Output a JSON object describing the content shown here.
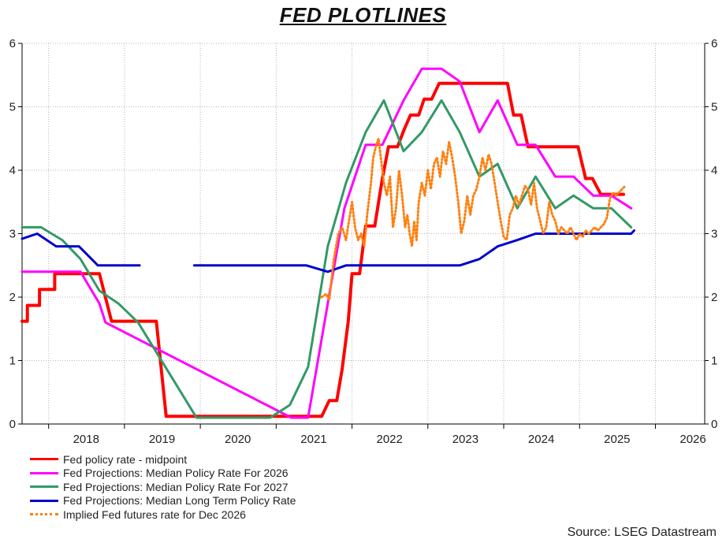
{
  "chart_data": {
    "type": "line",
    "title": "FED PLOTLINES",
    "source": "Source: LSEG Datastream",
    "y_range": [
      0,
      6
    ],
    "y_ticks": [
      0,
      1,
      2,
      3,
      4,
      5,
      6
    ],
    "x_range": [
      2017.65,
      2026.65
    ],
    "x_tick_labels": [
      "2018",
      "2019",
      "2020",
      "2021",
      "2022",
      "2023",
      "2024",
      "2025",
      "2026"
    ],
    "x_tick_positions": [
      2018.0,
      2019.0,
      2020.0,
      2021.0,
      2022.0,
      2023.0,
      2024.0,
      2025.0,
      2026.0
    ],
    "grid": true,
    "legend_position": "bottom-left",
    "series": [
      {
        "name": "Fed policy rate - midpoint",
        "color": "#ff0000",
        "style": "solid",
        "points": [
          [
            2017.65,
            1.62
          ],
          [
            2017.72,
            1.62
          ],
          [
            2017.72,
            1.87
          ],
          [
            2017.88,
            1.87
          ],
          [
            2017.88,
            2.12
          ],
          [
            2018.08,
            2.12
          ],
          [
            2018.08,
            2.37
          ],
          [
            2018.67,
            2.37
          ],
          [
            2018.83,
            1.62
          ],
          [
            2019.18,
            1.62
          ],
          [
            2019.18,
            1.62
          ],
          [
            2019.42,
            1.62
          ],
          [
            2019.55,
            0.12
          ],
          [
            2021.5,
            0.12
          ],
          [
            2021.6,
            0.12
          ],
          [
            2021.7,
            0.37
          ],
          [
            2021.8,
            0.37
          ],
          [
            2021.87,
            0.87
          ],
          [
            2021.95,
            1.62
          ],
          [
            2022.0,
            2.37
          ],
          [
            2022.1,
            2.37
          ],
          [
            2022.18,
            3.12
          ],
          [
            2022.3,
            3.12
          ],
          [
            2022.4,
            3.87
          ],
          [
            2022.48,
            4.37
          ],
          [
            2022.6,
            4.37
          ],
          [
            2022.68,
            4.62
          ],
          [
            2022.77,
            4.87
          ],
          [
            2022.88,
            4.87
          ],
          [
            2022.95,
            5.12
          ],
          [
            2023.05,
            5.12
          ],
          [
            2023.15,
            5.37
          ],
          [
            2024.05,
            5.37
          ],
          [
            2024.13,
            4.87
          ],
          [
            2024.23,
            4.87
          ],
          [
            2024.32,
            4.37
          ],
          [
            2024.98,
            4.37
          ],
          [
            2025.08,
            3.87
          ],
          [
            2025.17,
            3.87
          ],
          [
            2025.28,
            3.62
          ],
          [
            2025.58,
            3.62
          ]
        ]
      },
      {
        "name": "Fed Projections: Median Policy Rate For 2026",
        "color": "#ff00ff",
        "style": "solid",
        "points": [
          [
            2017.65,
            2.4
          ],
          [
            2018.42,
            2.4
          ],
          [
            2018.67,
            1.9
          ],
          [
            2018.75,
            1.6
          ],
          [
            2021.2,
            0.1
          ],
          [
            2021.42,
            0.1
          ],
          [
            2021.68,
            1.9
          ],
          [
            2021.9,
            3.4
          ],
          [
            2022.18,
            4.4
          ],
          [
            2022.4,
            4.4
          ],
          [
            2022.68,
            5.1
          ],
          [
            2022.92,
            5.6
          ],
          [
            2023.18,
            5.6
          ],
          [
            2023.42,
            5.4
          ],
          [
            2023.68,
            4.6
          ],
          [
            2023.92,
            5.1
          ],
          [
            2024.18,
            4.4
          ],
          [
            2024.42,
            4.4
          ],
          [
            2024.68,
            3.9
          ],
          [
            2024.92,
            3.9
          ],
          [
            2025.18,
            3.6
          ],
          [
            2025.42,
            3.6
          ],
          [
            2025.68,
            3.4
          ]
        ]
      },
      {
        "name": "Fed Projections: Median Policy Rate For 2027",
        "color": "#339966",
        "style": "solid",
        "points": [
          [
            2017.65,
            3.1
          ],
          [
            2017.9,
            3.1
          ],
          [
            2018.18,
            2.9
          ],
          [
            2018.42,
            2.6
          ],
          [
            2018.67,
            2.1
          ],
          [
            2018.92,
            1.9
          ],
          [
            2019.18,
            1.6
          ],
          [
            2019.95,
            0.1
          ],
          [
            2020.92,
            0.1
          ],
          [
            2021.18,
            0.3
          ],
          [
            2021.42,
            0.9
          ],
          [
            2021.68,
            2.8
          ],
          [
            2021.92,
            3.8
          ],
          [
            2022.18,
            4.6
          ],
          [
            2022.42,
            5.1
          ],
          [
            2022.68,
            4.3
          ],
          [
            2022.92,
            4.6
          ],
          [
            2023.18,
            5.1
          ],
          [
            2023.42,
            4.6
          ],
          [
            2023.68,
            3.9
          ],
          [
            2023.92,
            4.1
          ],
          [
            2024.18,
            3.4
          ],
          [
            2024.42,
            3.9
          ],
          [
            2024.68,
            3.4
          ],
          [
            2024.92,
            3.6
          ],
          [
            2025.18,
            3.4
          ],
          [
            2025.42,
            3.4
          ],
          [
            2025.68,
            3.1
          ]
        ]
      },
      {
        "name": "Fed Projections: Median Long Term Policy Rate",
        "color": "#0000cc",
        "style": "solid",
        "segments": [
          [
            [
              2017.65,
              2.92
            ],
            [
              2017.85,
              3.0
            ],
            [
              2018.1,
              2.8
            ],
            [
              2018.4,
              2.8
            ],
            [
              2018.65,
              2.5
            ],
            [
              2019.2,
              2.5
            ]
          ],
          [
            [
              2019.92,
              2.5
            ],
            [
              2021.4,
              2.5
            ],
            [
              2021.68,
              2.4
            ],
            [
              2021.92,
              2.5
            ],
            [
              2023.42,
              2.5
            ],
            [
              2023.68,
              2.6
            ],
            [
              2023.92,
              2.8
            ],
            [
              2024.18,
              2.9
            ],
            [
              2024.42,
              3.0
            ],
            [
              2025.68,
              3.0
            ],
            [
              2025.72,
              3.05
            ]
          ]
        ]
      },
      {
        "name": "Implied Fed futures rate for Dec 2026",
        "color": "#ff7f0e",
        "style": "dotted",
        "points": [
          [
            2021.6,
            2.0
          ],
          [
            2021.66,
            2.05
          ],
          [
            2021.7,
            1.95
          ],
          [
            2021.76,
            2.6
          ],
          [
            2021.82,
            3.0
          ],
          [
            2021.87,
            3.1
          ],
          [
            2021.92,
            2.9
          ],
          [
            2021.96,
            3.2
          ],
          [
            2022.0,
            3.5
          ],
          [
            2022.04,
            3.1
          ],
          [
            2022.08,
            2.9
          ],
          [
            2022.12,
            3.0
          ],
          [
            2022.16,
            2.8
          ],
          [
            2022.2,
            3.3
          ],
          [
            2022.25,
            3.8
          ],
          [
            2022.28,
            4.2
          ],
          [
            2022.32,
            4.4
          ],
          [
            2022.35,
            4.5
          ],
          [
            2022.38,
            4.2
          ],
          [
            2022.42,
            3.8
          ],
          [
            2022.46,
            3.6
          ],
          [
            2022.5,
            3.9
          ],
          [
            2022.54,
            3.1
          ],
          [
            2022.58,
            3.4
          ],
          [
            2022.62,
            4.0
          ],
          [
            2022.66,
            3.6
          ],
          [
            2022.7,
            3.1
          ],
          [
            2022.73,
            3.3
          ],
          [
            2022.76,
            3.0
          ],
          [
            2022.79,
            2.8
          ],
          [
            2022.82,
            3.2
          ],
          [
            2022.85,
            2.9
          ],
          [
            2022.88,
            3.5
          ],
          [
            2022.92,
            3.8
          ],
          [
            2022.96,
            3.6
          ],
          [
            2023.0,
            4.0
          ],
          [
            2023.04,
            3.7
          ],
          [
            2023.08,
            4.1
          ],
          [
            2023.12,
            4.2
          ],
          [
            2023.16,
            3.9
          ],
          [
            2023.2,
            4.3
          ],
          [
            2023.24,
            4.1
          ],
          [
            2023.28,
            4.45
          ],
          [
            2023.32,
            4.2
          ],
          [
            2023.36,
            3.9
          ],
          [
            2023.4,
            3.5
          ],
          [
            2023.44,
            3.0
          ],
          [
            2023.48,
            3.2
          ],
          [
            2023.52,
            3.6
          ],
          [
            2023.56,
            3.3
          ],
          [
            2023.6,
            3.6
          ],
          [
            2023.64,
            3.7
          ],
          [
            2023.68,
            3.9
          ],
          [
            2023.72,
            4.2
          ],
          [
            2023.76,
            4.0
          ],
          [
            2023.8,
            4.25
          ],
          [
            2023.84,
            4.1
          ],
          [
            2023.88,
            3.8
          ],
          [
            2023.92,
            3.5
          ],
          [
            2023.96,
            3.2
          ],
          [
            2024.0,
            2.95
          ],
          [
            2024.04,
            2.9
          ],
          [
            2024.08,
            3.3
          ],
          [
            2024.12,
            3.4
          ],
          [
            2024.16,
            3.6
          ],
          [
            2024.2,
            3.45
          ],
          [
            2024.24,
            3.6
          ],
          [
            2024.28,
            3.75
          ],
          [
            2024.32,
            3.7
          ],
          [
            2024.36,
            3.45
          ],
          [
            2024.4,
            3.8
          ],
          [
            2024.44,
            3.4
          ],
          [
            2024.48,
            3.2
          ],
          [
            2024.52,
            3.0
          ],
          [
            2024.56,
            3.1
          ],
          [
            2024.6,
            3.5
          ],
          [
            2024.64,
            3.3
          ],
          [
            2024.68,
            3.2
          ],
          [
            2024.72,
            3.0
          ],
          [
            2024.76,
            3.1
          ],
          [
            2024.8,
            3.05
          ],
          [
            2024.84,
            3.0
          ],
          [
            2024.88,
            3.1
          ],
          [
            2024.92,
            3.0
          ],
          [
            2024.96,
            2.9
          ],
          [
            2025.0,
            3.0
          ],
          [
            2025.04,
            2.95
          ],
          [
            2025.08,
            3.05
          ],
          [
            2025.12,
            3.0
          ],
          [
            2025.16,
            3.05
          ],
          [
            2025.2,
            3.1
          ],
          [
            2025.24,
            3.05
          ],
          [
            2025.28,
            3.1
          ],
          [
            2025.32,
            3.15
          ],
          [
            2025.36,
            3.25
          ],
          [
            2025.4,
            3.55
          ],
          [
            2025.44,
            3.65
          ],
          [
            2025.48,
            3.6
          ],
          [
            2025.52,
            3.65
          ],
          [
            2025.56,
            3.7
          ],
          [
            2025.6,
            3.75
          ]
        ]
      }
    ]
  }
}
